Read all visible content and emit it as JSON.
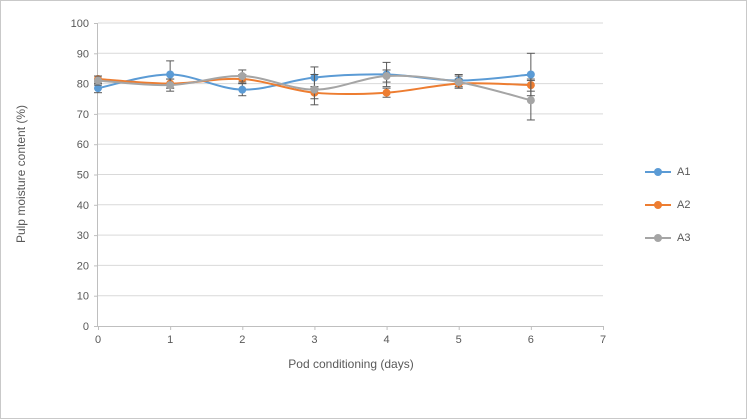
{
  "chart_data": {
    "type": "line",
    "title": "",
    "xlabel": "Pod conditioning (days)",
    "ylabel": "Pulp moisture content (%)",
    "xlim": [
      0,
      7
    ],
    "ylim": [
      0,
      100
    ],
    "xticks": [
      0,
      1,
      2,
      3,
      4,
      5,
      6,
      7
    ],
    "yticks": [
      0,
      10,
      20,
      30,
      40,
      50,
      60,
      70,
      80,
      90,
      100
    ],
    "grid": "horizontal",
    "legend_position": "right",
    "marker": "circle",
    "smooth": true,
    "x": [
      0,
      1,
      2,
      3,
      4,
      5,
      6
    ],
    "series": [
      {
        "name": "A1",
        "color": "#5B9BD5",
        "values": [
          78.5,
          83,
          78,
          82,
          83,
          81,
          83
        ],
        "errors": [
          1.5,
          4.5,
          2,
          3.5,
          4,
          2,
          7
        ]
      },
      {
        "name": "A2",
        "color": "#ED7D31",
        "values": [
          81.5,
          80,
          81.5,
          77,
          77,
          80,
          79.5
        ],
        "errors": [
          1,
          1.5,
          1.5,
          2,
          1.5,
          1.5,
          2
        ]
      },
      {
        "name": "A3",
        "color": "#A5A5A5",
        "values": [
          81,
          79.5,
          82.5,
          78,
          82.5,
          80.5,
          74.5
        ],
        "errors": [
          1.5,
          2,
          2,
          5,
          2,
          2,
          6.5
        ]
      }
    ],
    "error_bar_color": "#595959"
  },
  "colors": {
    "grid": "#D9D9D9",
    "axis": "#BFBFBF",
    "tick_text": "#595959",
    "border": "#C9C9C9"
  }
}
